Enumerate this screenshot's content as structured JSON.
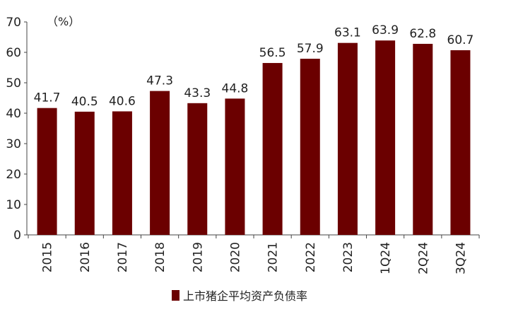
{
  "chart_data": {
    "type": "bar",
    "categories": [
      "2015",
      "2016",
      "2017",
      "2018",
      "2019",
      "2020",
      "2021",
      "2022",
      "2023",
      "1Q24",
      "2Q24",
      "3Q24"
    ],
    "series": [
      {
        "name": "上市猪企平均资产负债率",
        "values": [
          41.7,
          40.5,
          40.6,
          47.3,
          43.3,
          44.8,
          56.5,
          57.9,
          63.1,
          63.9,
          62.8,
          60.7
        ],
        "color": "#6b0000"
      }
    ],
    "unit_label": "（%）",
    "ylim": [
      0,
      70
    ],
    "yticks": [
      0,
      10,
      20,
      30,
      40,
      50,
      60,
      70
    ],
    "grid": false,
    "legend_position": "bottom"
  }
}
